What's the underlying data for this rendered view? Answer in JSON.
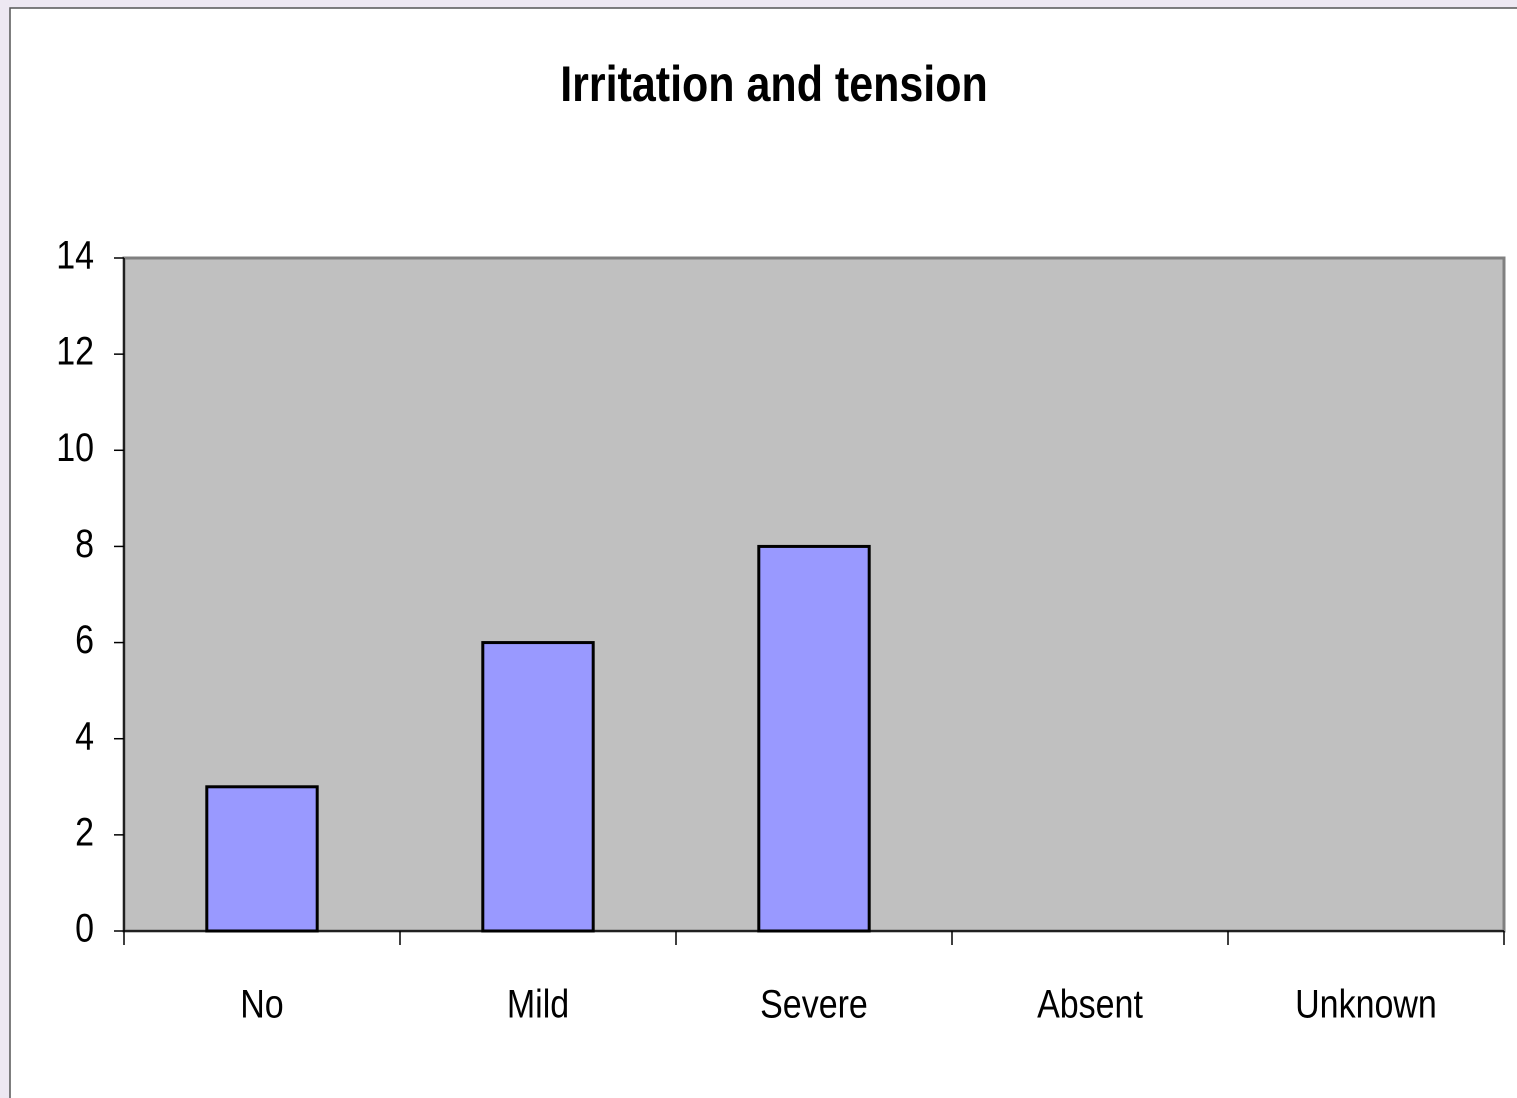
{
  "chart_data": {
    "type": "bar",
    "title": "Irritation and tension",
    "categories": [
      "No",
      "Mild",
      "Severe",
      "Absent",
      "Unknown"
    ],
    "values": [
      3,
      6,
      8,
      0,
      0
    ],
    "color": "#9999ff",
    "plot_background": "#c0c0c0",
    "ylim": [
      0,
      14
    ],
    "yticks": [
      0,
      2,
      4,
      6,
      8,
      10,
      12,
      14
    ],
    "grid": false
  }
}
